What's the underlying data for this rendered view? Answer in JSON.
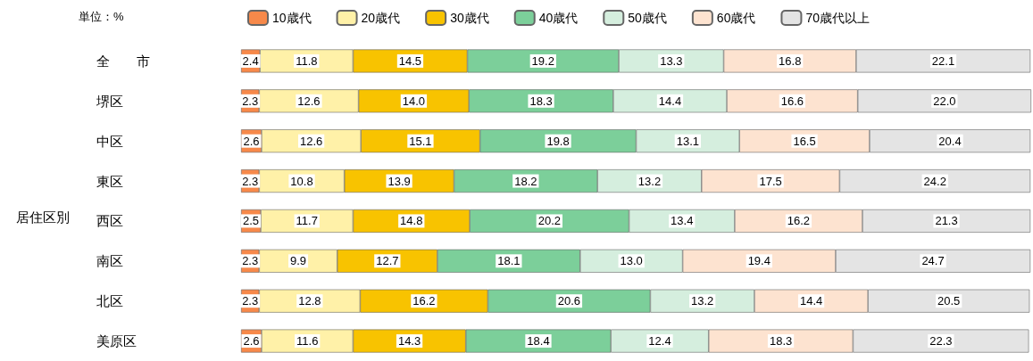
{
  "chart_data": {
    "type": "bar",
    "orientation": "horizontal",
    "stacked": true,
    "legend": "top",
    "categories": [
      "全　　市",
      "堺区",
      "中区",
      "東区",
      "西区",
      "南区",
      "北区",
      "美原区"
    ],
    "annotations": [
      "単位：%",
      "居住区別"
    ],
    "series": [
      {
        "name": "10歳代",
        "color": "#f7894a",
        "values": [
          2.4,
          2.3,
          2.6,
          2.3,
          2.5,
          2.3,
          2.3,
          2.6
        ],
        "value_labels": [
          "2.4",
          "2.3",
          "2.6",
          "2.3",
          "2.5",
          "2.3",
          "2.3",
          "2.6"
        ]
      },
      {
        "name": "20歳代",
        "color": "#fff1a8",
        "values": [
          11.8,
          12.6,
          12.6,
          10.8,
          11.7,
          9.9,
          12.8,
          11.6
        ],
        "value_labels": [
          "11.8",
          "12.6",
          "12.6",
          "10.8",
          "11.7",
          "9.9",
          "12.8",
          "11.6"
        ]
      },
      {
        "name": "30歳代",
        "color": "#f8c300",
        "values": [
          14.5,
          14.0,
          15.1,
          13.9,
          14.8,
          12.7,
          16.2,
          14.3
        ],
        "value_labels": [
          "14.5",
          "14.0",
          "15.1",
          "13.9",
          "14.8",
          "12.7",
          "16.2",
          "14.3"
        ]
      },
      {
        "name": "40歳代",
        "color": "#7ccf9a",
        "values": [
          19.2,
          18.3,
          19.8,
          18.2,
          20.2,
          18.1,
          20.6,
          18.4
        ],
        "value_labels": [
          "19.2",
          "18.3",
          "19.8",
          "18.2",
          "20.2",
          "18.1",
          "20.6",
          "18.4"
        ]
      },
      {
        "name": "50歳代",
        "color": "#d5eede",
        "values": [
          13.3,
          14.4,
          13.1,
          13.2,
          13.4,
          13.0,
          13.2,
          12.4
        ],
        "value_labels": [
          "13.3",
          "14.4",
          "13.1",
          "13.2",
          "13.4",
          "13.0",
          "13.2",
          "12.4"
        ]
      },
      {
        "name": "60歳代",
        "color": "#fde3d0",
        "values": [
          16.8,
          16.6,
          16.5,
          17.5,
          16.2,
          19.4,
          14.4,
          18.3
        ],
        "value_labels": [
          "16.8",
          "16.6",
          "16.5",
          "17.5",
          "16.2",
          "19.4",
          "14.4",
          "18.3"
        ]
      },
      {
        "name": "70歳代以上",
        "color": "#e4e4e4",
        "values": [
          22.1,
          22.0,
          20.4,
          24.2,
          21.3,
          24.7,
          20.5,
          22.3
        ],
        "value_labels": [
          "22.1",
          "22.0",
          "20.4",
          "24.2",
          "21.3",
          "24.7",
          "20.5",
          "22.3"
        ]
      }
    ]
  }
}
